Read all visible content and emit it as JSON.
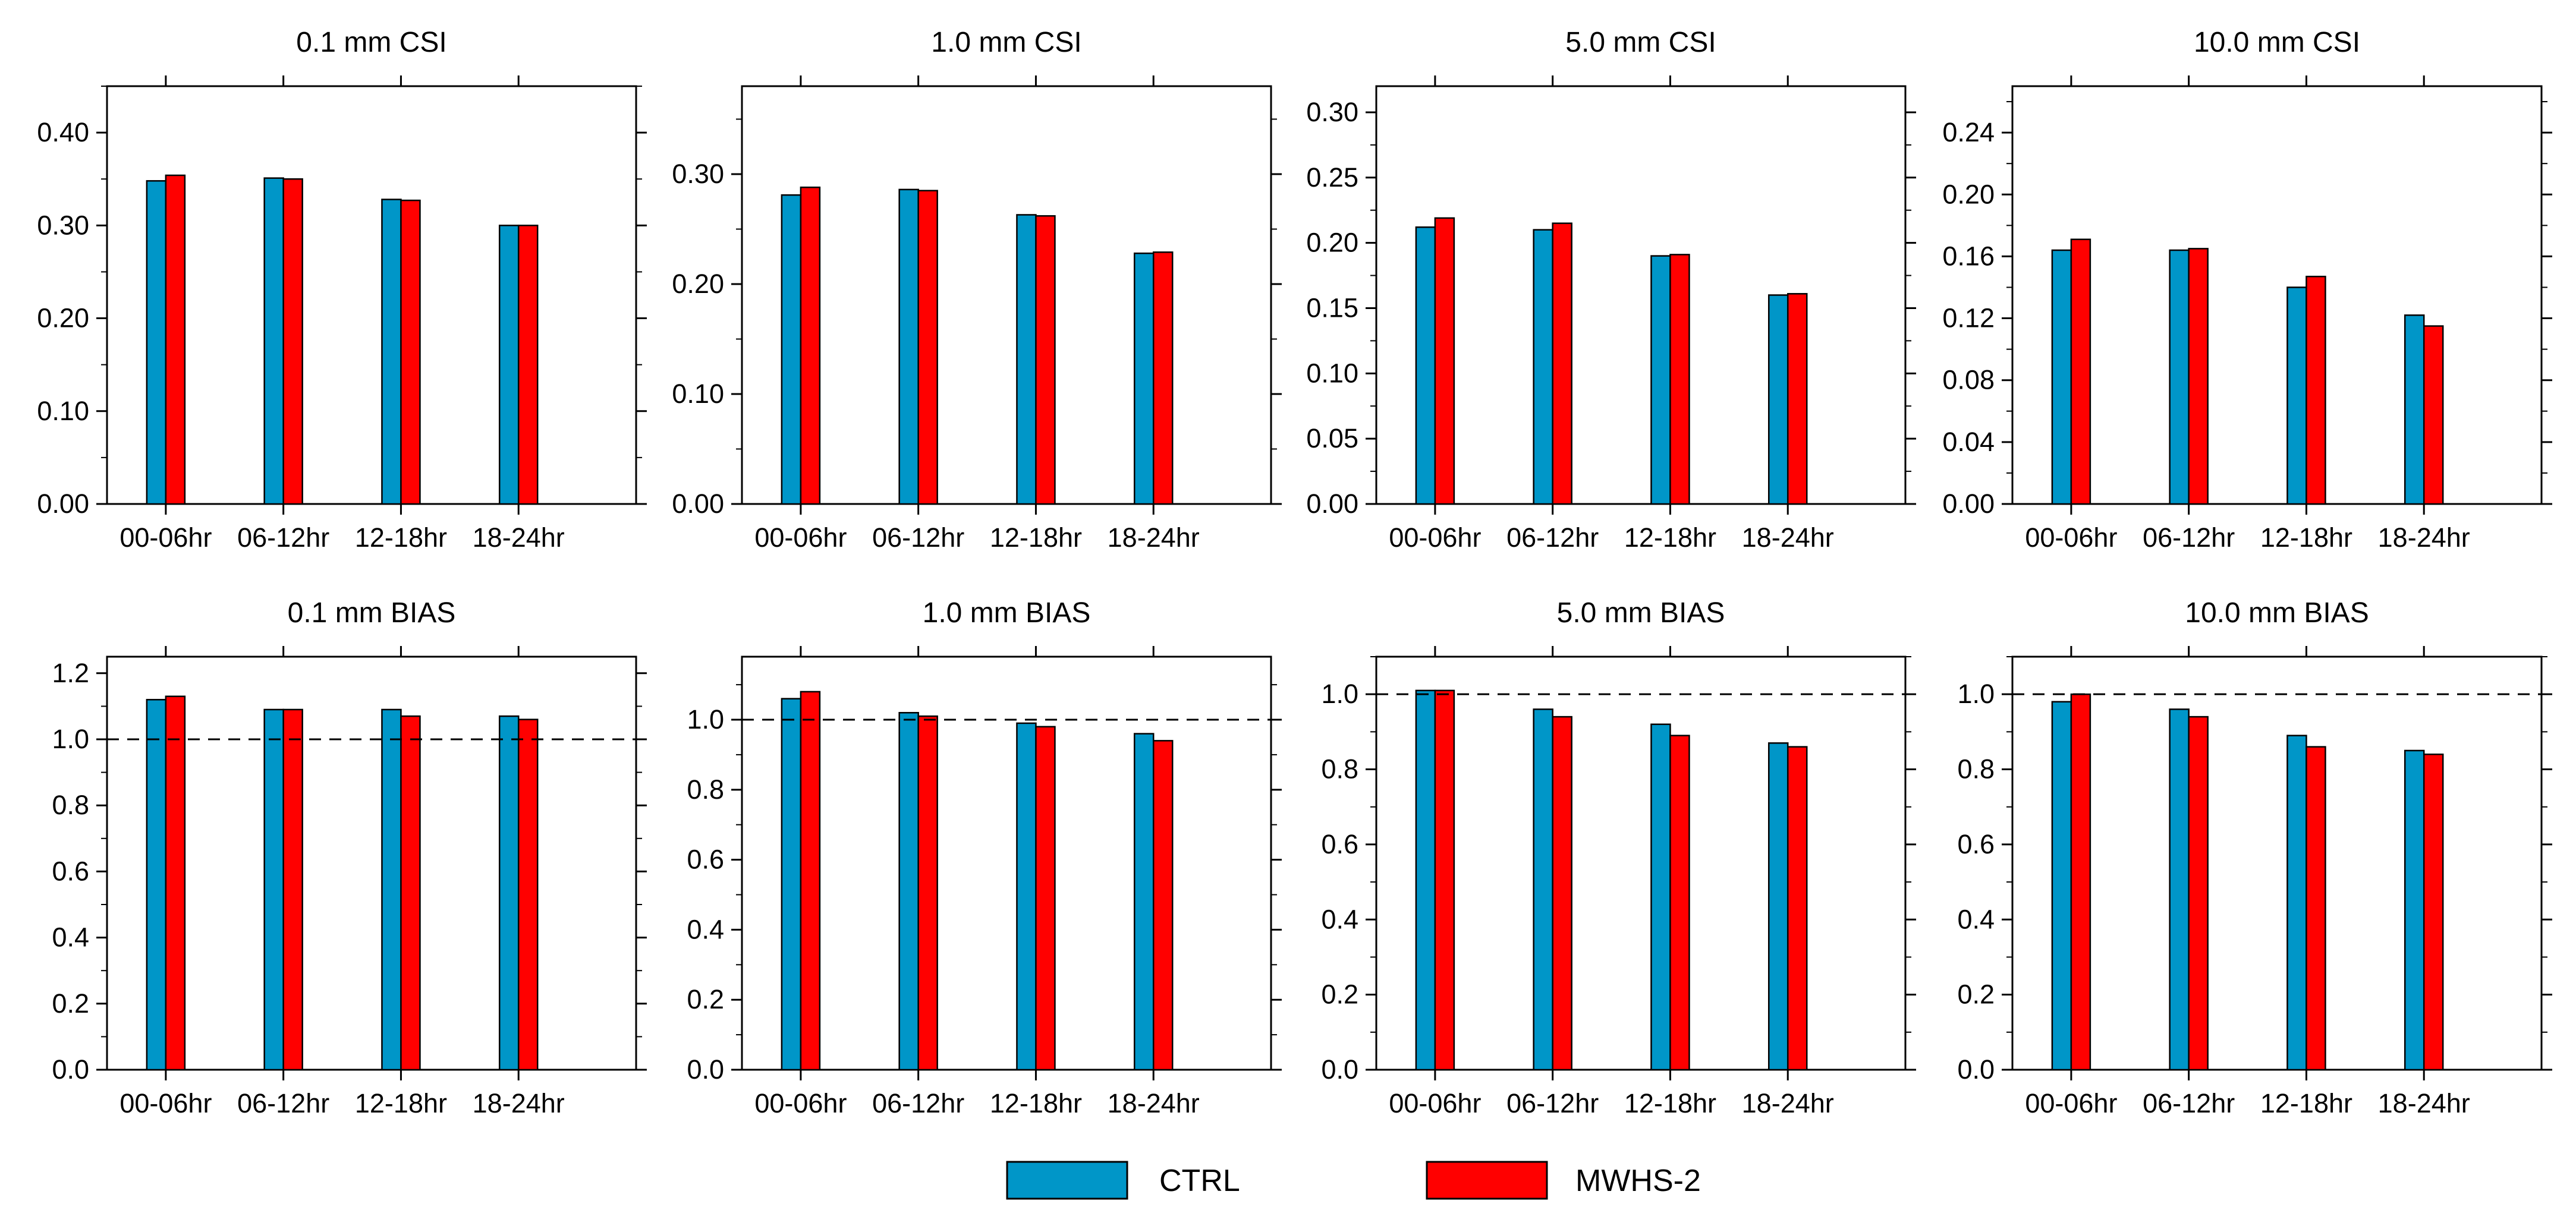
{
  "colors": {
    "CTRL": "#0096C8",
    "MWHS-2": "#FF0000",
    "reference_line": "#000000"
  },
  "legend": {
    "position": "bottom-center",
    "items": [
      "CTRL",
      "MWHS-2"
    ]
  },
  "chart_data": [
    {
      "type": "bar",
      "title": "0.1 mm  CSI",
      "categories": [
        "00-06hr",
        "06-12hr",
        "12-18hr",
        "18-24hr"
      ],
      "ylim": [
        0,
        0.45
      ],
      "yticks": [
        "0.00",
        "0.10",
        "0.20",
        "0.30",
        "0.40"
      ],
      "ytick_values": [
        0,
        0.1,
        0.2,
        0.3,
        0.4
      ],
      "minor_step": 0.05,
      "yaxis_side": "left",
      "grid": false,
      "series": [
        {
          "name": "CTRL",
          "values": [
            0.348,
            0.351,
            0.328,
            0.3
          ]
        },
        {
          "name": "MWHS-2",
          "values": [
            0.354,
            0.35,
            0.327,
            0.3
          ]
        }
      ]
    },
    {
      "type": "bar",
      "title": "1.0 mm  CSI",
      "categories": [
        "00-06hr",
        "06-12hr",
        "12-18hr",
        "18-24hr"
      ],
      "ylim": [
        0,
        0.38
      ],
      "yticks": [
        "0.00",
        "0.10",
        "0.20",
        "0.30"
      ],
      "ytick_values": [
        0,
        0.1,
        0.2,
        0.3
      ],
      "minor_step": 0.05,
      "yaxis_side": "left",
      "grid": false,
      "series": [
        {
          "name": "CTRL",
          "values": [
            0.281,
            0.286,
            0.263,
            0.228
          ]
        },
        {
          "name": "MWHS-2",
          "values": [
            0.288,
            0.285,
            0.262,
            0.229
          ]
        }
      ]
    },
    {
      "type": "bar",
      "title": "5.0 mm  CSI",
      "categories": [
        "00-06hr",
        "06-12hr",
        "12-18hr",
        "18-24hr"
      ],
      "ylim": [
        0,
        0.32
      ],
      "yticks": [
        "0.00",
        "0.05",
        "0.10",
        "0.15",
        "0.20",
        "0.25",
        "0.30"
      ],
      "ytick_values": [
        0,
        0.05,
        0.1,
        0.15,
        0.2,
        0.25,
        0.3
      ],
      "minor_step": 0.025,
      "yaxis_side": "left",
      "grid": false,
      "series": [
        {
          "name": "CTRL",
          "values": [
            0.212,
            0.21,
            0.19,
            0.16
          ]
        },
        {
          "name": "MWHS-2",
          "values": [
            0.219,
            0.215,
            0.191,
            0.161
          ]
        }
      ]
    },
    {
      "type": "bar",
      "title": "10.0 mm  CSI",
      "categories": [
        "00-06hr",
        "06-12hr",
        "12-18hr",
        "18-24hr"
      ],
      "ylim": [
        0,
        0.27
      ],
      "yticks": [
        "0.00",
        "0.04",
        "0.08",
        "0.12",
        "0.16",
        "0.20",
        "0.24"
      ],
      "ytick_values": [
        0,
        0.04,
        0.08,
        0.12,
        0.16,
        0.2,
        0.24
      ],
      "minor_step": 0.02,
      "yaxis_side": "left",
      "grid": false,
      "series": [
        {
          "name": "CTRL",
          "values": [
            0.164,
            0.164,
            0.14,
            0.122
          ]
        },
        {
          "name": "MWHS-2",
          "values": [
            0.171,
            0.165,
            0.147,
            0.115
          ]
        }
      ]
    },
    {
      "type": "bar",
      "title": "0.1 mm  BIAS",
      "categories": [
        "00-06hr",
        "06-12hr",
        "12-18hr",
        "18-24hr"
      ],
      "ylim": [
        0,
        1.25
      ],
      "yticks": [
        "0.0",
        "0.2",
        "0.4",
        "0.6",
        "0.8",
        "1.0",
        "1.2"
      ],
      "ytick_values": [
        0,
        0.2,
        0.4,
        0.6,
        0.8,
        1.0,
        1.2
      ],
      "minor_step": 0.1,
      "yaxis_side": "left",
      "grid": false,
      "reference_line": 1.0,
      "series": [
        {
          "name": "CTRL",
          "values": [
            1.12,
            1.09,
            1.09,
            1.07
          ]
        },
        {
          "name": "MWHS-2",
          "values": [
            1.13,
            1.09,
            1.07,
            1.06
          ]
        }
      ]
    },
    {
      "type": "bar",
      "title": "1.0 mm  BIAS",
      "categories": [
        "00-06hr",
        "06-12hr",
        "12-18hr",
        "18-24hr"
      ],
      "ylim": [
        0,
        1.18
      ],
      "yticks": [
        "0.0",
        "0.2",
        "0.4",
        "0.6",
        "0.8",
        "1.0"
      ],
      "ytick_values": [
        0,
        0.2,
        0.4,
        0.6,
        0.8,
        1.0
      ],
      "minor_step": 0.1,
      "yaxis_side": "left",
      "grid": false,
      "reference_line": 1.0,
      "series": [
        {
          "name": "CTRL",
          "values": [
            1.06,
            1.02,
            0.99,
            0.96
          ]
        },
        {
          "name": "MWHS-2",
          "values": [
            1.08,
            1.01,
            0.98,
            0.94
          ]
        }
      ]
    },
    {
      "type": "bar",
      "title": "5.0 mm  BIAS",
      "categories": [
        "00-06hr",
        "06-12hr",
        "12-18hr",
        "18-24hr"
      ],
      "ylim": [
        0,
        1.1
      ],
      "yticks": [
        "0.0",
        "0.2",
        "0.4",
        "0.6",
        "0.8",
        "1.0"
      ],
      "ytick_values": [
        0,
        0.2,
        0.4,
        0.6,
        0.8,
        1.0
      ],
      "minor_step": 0.1,
      "yaxis_side": "left",
      "grid": false,
      "reference_line": 1.0,
      "series": [
        {
          "name": "CTRL",
          "values": [
            1.01,
            0.96,
            0.92,
            0.87
          ]
        },
        {
          "name": "MWHS-2",
          "values": [
            1.01,
            0.94,
            0.89,
            0.86
          ]
        }
      ]
    },
    {
      "type": "bar",
      "title": "10.0 mm  BIAS",
      "categories": [
        "00-06hr",
        "06-12hr",
        "12-18hr",
        "18-24hr"
      ],
      "ylim": [
        0,
        1.1
      ],
      "yticks": [
        "0.0",
        "0.2",
        "0.4",
        "0.6",
        "0.8",
        "1.0"
      ],
      "ytick_values": [
        0,
        0.2,
        0.4,
        0.6,
        0.8,
        1.0
      ],
      "minor_step": 0.1,
      "yaxis_side": "left",
      "grid": false,
      "reference_line": 1.0,
      "series": [
        {
          "name": "CTRL",
          "values": [
            0.98,
            0.96,
            0.89,
            0.85
          ]
        },
        {
          "name": "MWHS-2",
          "values": [
            1.0,
            0.94,
            0.86,
            0.84
          ]
        }
      ]
    }
  ]
}
